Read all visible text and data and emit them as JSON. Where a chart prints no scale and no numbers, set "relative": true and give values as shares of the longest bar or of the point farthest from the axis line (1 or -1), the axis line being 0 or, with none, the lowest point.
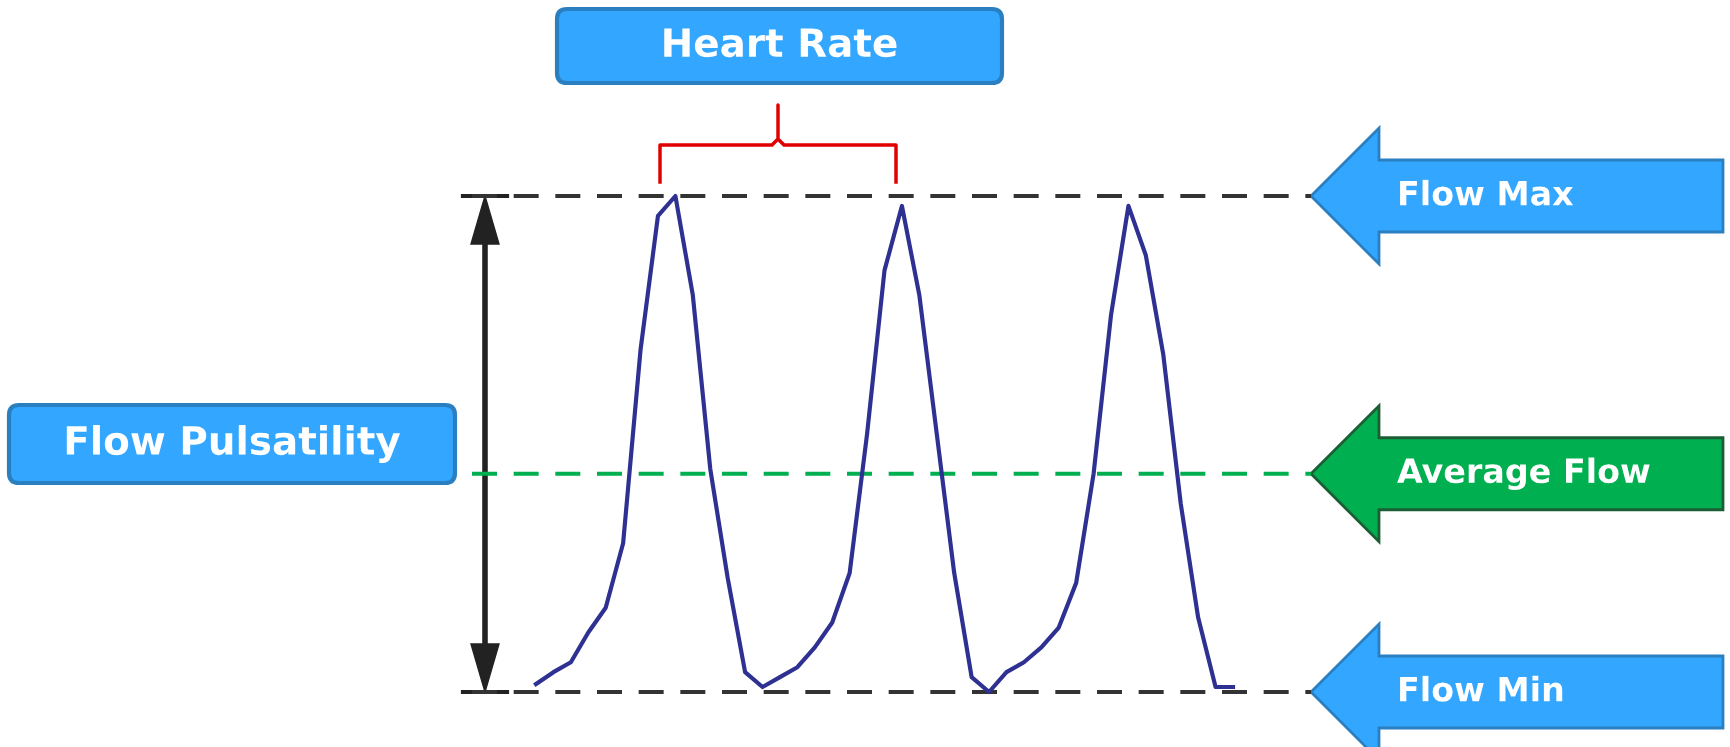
{
  "chart_data": {
    "type": "line",
    "relative": true,
    "categories": [
      null,
      null,
      null,
      null,
      null,
      null,
      null,
      null,
      null,
      null,
      null,
      null,
      null,
      null,
      null,
      null,
      null,
      null,
      null,
      null,
      null,
      null,
      null,
      null,
      null,
      null,
      null,
      null,
      null,
      null,
      null,
      null,
      null,
      null,
      null,
      null,
      null,
      null,
      null,
      null,
      null
    ],
    "series": [
      {
        "color": "#2e3192",
        "values": [
          0.016,
          0.04,
          0.06,
          0.12,
          0.17,
          0.3,
          0.69,
          0.96,
          1.0,
          0.8,
          0.45,
          0.23,
          0.04,
          0.01,
          0.03,
          0.05,
          0.09,
          0.14,
          0.24,
          0.52,
          0.85,
          0.98,
          0.8,
          0.52,
          0.24,
          0.03,
          0.0,
          0.04,
          0.06,
          0.09,
          0.13,
          0.22,
          0.44,
          0.76,
          0.98,
          0.88,
          0.68,
          0.38,
          0.15,
          0.01,
          0.01
        ]
      }
    ],
    "ref_lines": [
      {
        "axis": "y",
        "value": 1,
        "label": "Flow Max",
        "color": "#333333",
        "line_style": "dashed"
      },
      {
        "axis": "y",
        "value": 0.44,
        "label": "Average Flow",
        "color": "#00b050",
        "line_style": "dashed"
      },
      {
        "axis": "y",
        "value": 0,
        "label": "Flow Min",
        "color": "#333333",
        "line_style": "dashed"
      }
    ],
    "annotations": [
      "Heart Rate",
      "Flow Pulsatility"
    ]
  }
}
